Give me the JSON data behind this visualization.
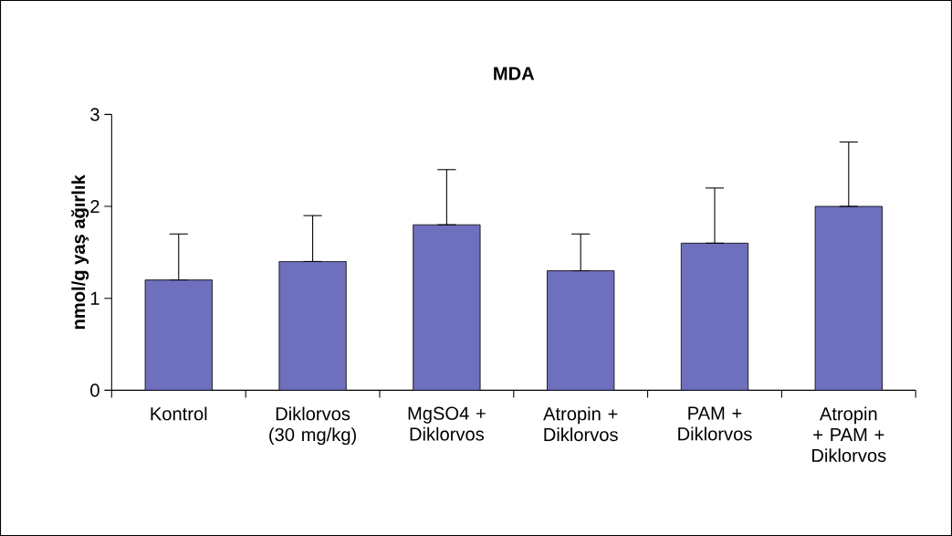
{
  "chart_data": {
    "type": "bar",
    "title": "MDA",
    "ylabel": "nmol/g yaş ağırlık",
    "categories": [
      "Kontrol",
      "Diklorvos (30 mg/kg)",
      "MgSO4 + Diklorvos",
      "Atropin + Diklorvos",
      "PAM + Diklorvos",
      "Atropin + PAM + Diklorvos"
    ],
    "values": [
      1.2,
      1.4,
      1.8,
      1.3,
      1.6,
      2.0
    ],
    "errors": [
      [
        1.2,
        1.7
      ],
      [
        1.4,
        1.9
      ],
      [
        1.8,
        2.4
      ],
      [
        1.3,
        1.7
      ],
      [
        1.6,
        2.2
      ],
      [
        2.0,
        2.7
      ]
    ],
    "color": "#6e6fbd",
    "ylim": [
      0,
      3
    ],
    "yticks": [
      0,
      1,
      2,
      3
    ],
    "grid": false
  }
}
